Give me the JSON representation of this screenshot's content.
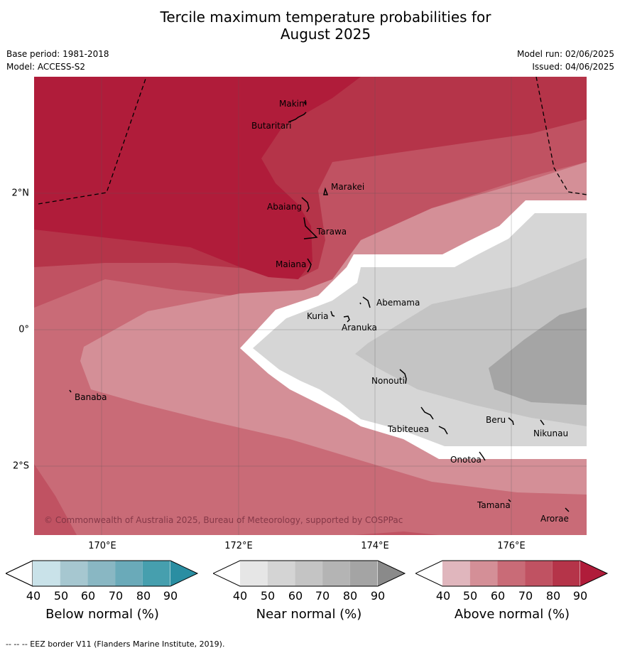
{
  "title_line1": "Tercile maximum temperature probabilities for",
  "title_line2": "August 2025",
  "base_period": "Base period: 1981-2018",
  "model": "Model: ACCESS-S2",
  "model_run": "Model run: 02/06/2025",
  "issued": "Issued: 04/06/2025",
  "copyright": "© Commonwealth of Australia 2025, Bureau of Meteorology, supported by COSPPac",
  "footer": "--  --  -- EEZ border V11 (Flanders Marine Institute, 2019).",
  "lon_labels": [
    "170°E",
    "172°E",
    "174°E",
    "176°E"
  ],
  "lat_labels": [
    "2°N",
    "0°",
    "2°S"
  ],
  "islands": [
    "Makin",
    "Butaritari",
    "Marakei",
    "Abaiang",
    "Tarawa",
    "Maiana",
    "Abemama",
    "Kuria",
    "Aranuka",
    "Nonouti",
    "Tabiteuea",
    "Beru",
    "Nikunau",
    "Onotoa",
    "Tamana",
    "Arorae",
    "Banaba"
  ],
  "colorbars": [
    {
      "title": "Below normal (%)",
      "ticks": [
        "40",
        "50",
        "60",
        "70",
        "80",
        "90"
      ],
      "colors": [
        "#c9e2e9",
        "#a6c7d0",
        "#89b7c3",
        "#6aaab9",
        "#469fae",
        "#2a8ea2"
      ]
    },
    {
      "title": "Near normal (%)",
      "ticks": [
        "40",
        "50",
        "60",
        "70",
        "80",
        "90"
      ],
      "colors": [
        "#e6e6e6",
        "#d4d4d4",
        "#c4c4c4",
        "#b4b4b4",
        "#a4a4a4",
        "#8a8a8a"
      ]
    },
    {
      "title": "Above normal (%)",
      "ticks": [
        "40",
        "50",
        "60",
        "70",
        "80",
        "90"
      ],
      "colors": [
        "#e0b6bd",
        "#d48f97",
        "#c96b77",
        "#c05262",
        "#b53449",
        "#b01c3a"
      ]
    }
  ],
  "palette": {
    "above_90": "#b01c3a",
    "above_80": "#b53449",
    "above_70": "#c05262",
    "above_60": "#c96b77",
    "above_50": "#d48f97",
    "near_50": "#d6d6d6",
    "near_60": "#c4c4c4",
    "near_70": "#a5a5a5"
  }
}
